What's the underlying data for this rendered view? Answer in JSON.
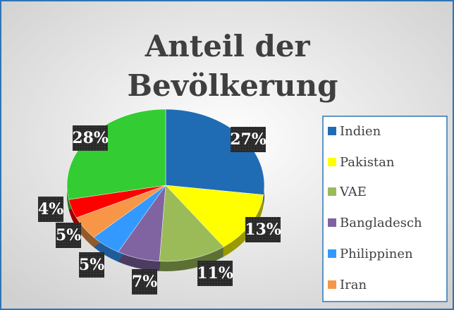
{
  "chart_data": {
    "type": "pie",
    "title": "Anteil der Bevölkerung",
    "categories": [
      "Indien",
      "Pakistan",
      "VAE",
      "Bangladesch",
      "Philippinen",
      "Iran",
      null,
      null
    ],
    "values": [
      27,
      13,
      11,
      7,
      5,
      5,
      4,
      28
    ],
    "value_labels": [
      "27%",
      "13%",
      "11%",
      "7%",
      "5%",
      "5%",
      "4%",
      "28%"
    ],
    "colors": [
      "#1f6cb4",
      "#ffff00",
      "#9bbb59",
      "#8064a2",
      "#3399ff",
      "#f79646",
      "#ff0000",
      "#33cc33"
    ],
    "legend": "right"
  }
}
